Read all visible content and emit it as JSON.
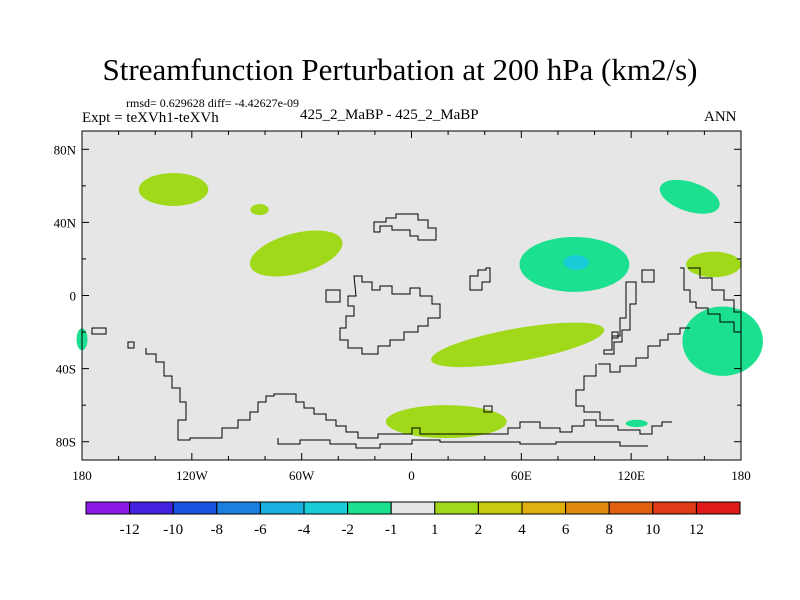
{
  "chart_data": {
    "type": "heatmap",
    "title": "Streamfunction Perturbation at 200 hPa (km2/s)",
    "stats": "rmsd= 0.629628 diff= -4.42627e-09",
    "left_label": "Expt = teXVh1-teXVh",
    "center_label": "425_2_MaBP - 425_2_MaBP",
    "right_label": "ANN",
    "x_axis": {
      "range": [
        -180,
        180
      ],
      "ticks": [
        -180,
        -120,
        -60,
        0,
        60,
        120,
        180
      ],
      "tick_labels": [
        "180",
        "120W",
        "60W",
        "0",
        "60E",
        "120E",
        "180"
      ]
    },
    "y_axis": {
      "range": [
        -90,
        90
      ],
      "ticks": [
        80,
        40,
        0,
        -40,
        -80
      ],
      "tick_labels": [
        "80N",
        "40N",
        "0",
        "40S",
        "80S"
      ]
    },
    "background_color": "#e6e6e6",
    "colorbar": {
      "labels": [
        "-12",
        "-10",
        "-8",
        "-6",
        "-4",
        "-2",
        "-1",
        "1",
        "2",
        "4",
        "6",
        "8",
        "10",
        "12"
      ],
      "colors": [
        "#8b1ae6",
        "#4422e0",
        "#1a52e0",
        "#1a80e0",
        "#19b0e0",
        "#19ccd8",
        "#1ae090",
        "#e6e6e6",
        "#a0d91a",
        "#c9cc10",
        "#e0b010",
        "#e08a10",
        "#e06010",
        "#e03a18",
        "#e01a18"
      ]
    },
    "anomaly_regions": [
      {
        "lon": -130,
        "lat": 58,
        "rlon": 19,
        "rlat": 9,
        "rotate": 0,
        "value": 1.5
      },
      {
        "lon": -83,
        "lat": 47,
        "rlon": 5,
        "rlat": 3,
        "rotate": 0,
        "value": 1.5
      },
      {
        "lon": -63,
        "lat": 23,
        "rlon": 26,
        "rlat": 11,
        "rotate": -15,
        "value": 1.5
      },
      {
        "lon": 89,
        "lat": 17,
        "rlon": 30,
        "rlat": 15,
        "rotate": 0,
        "value": -1.5
      },
      {
        "lon": 90,
        "lat": 18,
        "rlon": 7,
        "rlat": 4,
        "rotate": 0,
        "value": -2.5
      },
      {
        "lon": 152,
        "lat": 54,
        "rlon": 17,
        "rlat": 8,
        "rotate": 18,
        "value": -1.5
      },
      {
        "lon": 165,
        "lat": 17,
        "rlon": 15,
        "rlat": 7,
        "rotate": 0,
        "value": 1.5
      },
      {
        "lon": 170,
        "lat": -25,
        "rlon": 22,
        "rlat": 19,
        "rotate": 0,
        "value": -1.5
      },
      {
        "lon": -180,
        "lat": -24,
        "rlon": 3,
        "rlat": 6,
        "rotate": 0,
        "value": -1.5
      },
      {
        "lon": 58,
        "lat": -27,
        "rlon": 48,
        "rlat": 9,
        "rotate": -10,
        "value": 1.5
      },
      {
        "lon": 19,
        "lat": -69,
        "rlon": 33,
        "rlat": 9,
        "rotate": 0,
        "value": 1.5
      },
      {
        "lon": 123,
        "lat": -70,
        "rlon": 6,
        "rlat": 2,
        "rotate": 0,
        "value": -1.5
      }
    ]
  }
}
